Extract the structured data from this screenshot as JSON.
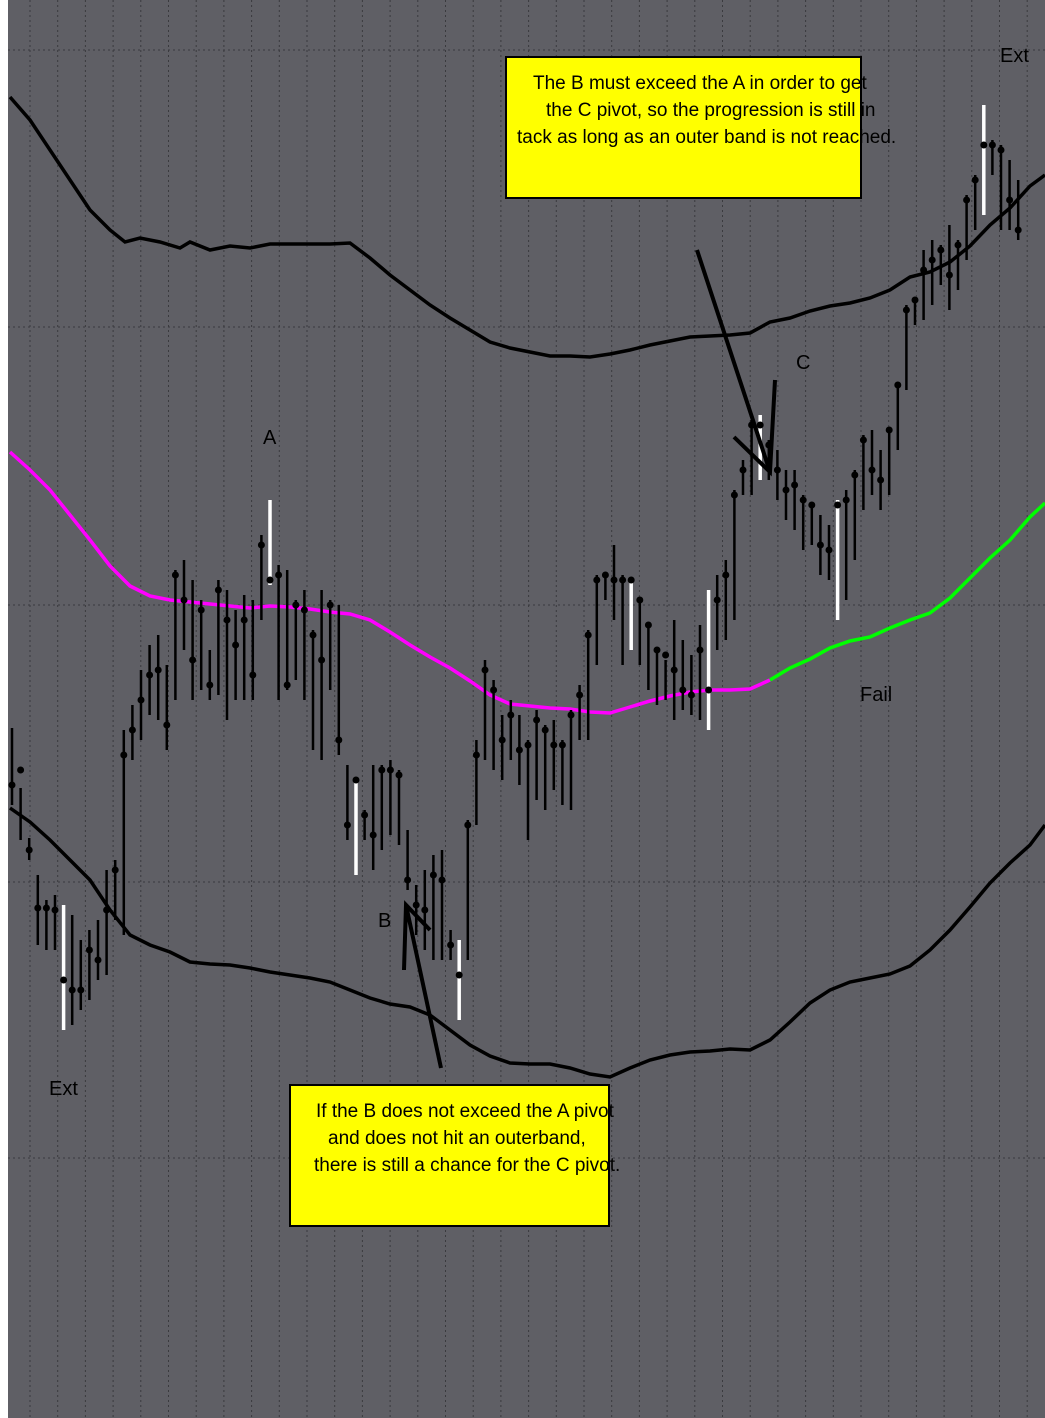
{
  "chart_data": {
    "type": "ohlc",
    "title": "",
    "xlabel": "",
    "ylabel": "",
    "grid": true,
    "background": "#5f5f65",
    "colors": {
      "bars": "#000000",
      "highlight_bars": "#ffffff",
      "bands": "#000000",
      "midline_before": "#ff00ff",
      "midline_after": "#00ff00",
      "annotation_box": "#ffff00"
    },
    "ylim": [
      0,
      1418
    ],
    "bars": [
      [
        728,
        785,
        805,
        false
      ],
      [
        788,
        770,
        840,
        false
      ],
      [
        838,
        850,
        860,
        false
      ],
      [
        875,
        908,
        945,
        false
      ],
      [
        900,
        908,
        950,
        false
      ],
      [
        895,
        910,
        950,
        false
      ],
      [
        905,
        980,
        1030,
        true
      ],
      [
        915,
        990,
        1025,
        false
      ],
      [
        940,
        990,
        1010,
        false
      ],
      [
        930,
        950,
        1000,
        false
      ],
      [
        920,
        960,
        980,
        false
      ],
      [
        870,
        910,
        975,
        false
      ],
      [
        860,
        870,
        920,
        false
      ],
      [
        730,
        755,
        935,
        false
      ],
      [
        705,
        730,
        760,
        false
      ],
      [
        670,
        700,
        740,
        false
      ],
      [
        645,
        675,
        715,
        false
      ],
      [
        635,
        670,
        720,
        false
      ],
      [
        665,
        725,
        750,
        false
      ],
      [
        570,
        575,
        700,
        false
      ],
      [
        560,
        600,
        650,
        false
      ],
      [
        580,
        660,
        700,
        false
      ],
      [
        600,
        610,
        690,
        false
      ],
      [
        650,
        685,
        700,
        false
      ],
      [
        580,
        590,
        695,
        false
      ],
      [
        590,
        620,
        720,
        false
      ],
      [
        610,
        645,
        700,
        false
      ],
      [
        595,
        620,
        700,
        false
      ],
      [
        600,
        675,
        700,
        false
      ],
      [
        535,
        545,
        620,
        false
      ],
      [
        500,
        580,
        585,
        true
      ],
      [
        565,
        575,
        700,
        false
      ],
      [
        570,
        685,
        690,
        false
      ],
      [
        600,
        605,
        680,
        false
      ],
      [
        590,
        610,
        700,
        false
      ],
      [
        630,
        635,
        750,
        false
      ],
      [
        590,
        660,
        760,
        false
      ],
      [
        600,
        605,
        690,
        false
      ],
      [
        605,
        740,
        755,
        false
      ],
      [
        765,
        825,
        840,
        false
      ],
      [
        780,
        780,
        875,
        true
      ],
      [
        810,
        815,
        840,
        false
      ],
      [
        765,
        835,
        870,
        false
      ],
      [
        765,
        770,
        850,
        false
      ],
      [
        760,
        770,
        835,
        false
      ],
      [
        770,
        775,
        845,
        false
      ],
      [
        830,
        880,
        890,
        false
      ],
      [
        885,
        905,
        935,
        false
      ],
      [
        870,
        910,
        950,
        false
      ],
      [
        855,
        875,
        960,
        false
      ],
      [
        850,
        880,
        960,
        false
      ],
      [
        930,
        945,
        960,
        false
      ],
      [
        940,
        975,
        1020,
        true
      ],
      [
        820,
        825,
        960,
        false
      ],
      [
        740,
        755,
        825,
        false
      ],
      [
        660,
        670,
        760,
        false
      ],
      [
        680,
        690,
        770,
        false
      ],
      [
        715,
        740,
        780,
        false
      ],
      [
        700,
        715,
        760,
        false
      ],
      [
        715,
        750,
        785,
        false
      ],
      [
        740,
        745,
        840,
        false
      ],
      [
        710,
        720,
        800,
        false
      ],
      [
        725,
        730,
        810,
        false
      ],
      [
        720,
        745,
        790,
        false
      ],
      [
        740,
        745,
        805,
        false
      ],
      [
        710,
        715,
        810,
        false
      ],
      [
        685,
        695,
        740,
        false
      ],
      [
        630,
        635,
        740,
        false
      ],
      [
        575,
        580,
        665,
        false
      ],
      [
        575,
        575,
        600,
        false
      ],
      [
        545,
        580,
        620,
        false
      ],
      [
        575,
        580,
        665,
        false
      ],
      [
        580,
        580,
        650,
        true
      ],
      [
        600,
        600,
        665,
        false
      ],
      [
        625,
        625,
        690,
        false
      ],
      [
        650,
        650,
        705,
        false
      ],
      [
        660,
        655,
        700,
        false
      ],
      [
        620,
        670,
        720,
        false
      ],
      [
        640,
        690,
        710,
        false
      ],
      [
        655,
        695,
        715,
        false
      ],
      [
        625,
        650,
        720,
        false
      ],
      [
        590,
        690,
        730,
        true
      ],
      [
        575,
        600,
        650,
        false
      ],
      [
        560,
        575,
        640,
        false
      ],
      [
        490,
        495,
        620,
        false
      ],
      [
        460,
        470,
        495,
        false
      ],
      [
        420,
        425,
        495,
        false
      ],
      [
        415,
        425,
        480,
        true
      ],
      [
        440,
        445,
        480,
        false
      ],
      [
        450,
        470,
        500,
        false
      ],
      [
        470,
        490,
        520,
        false
      ],
      [
        470,
        485,
        530,
        false
      ],
      [
        495,
        500,
        550,
        false
      ],
      [
        505,
        505,
        545,
        false
      ],
      [
        515,
        545,
        575,
        false
      ],
      [
        525,
        550,
        580,
        false
      ],
      [
        500,
        505,
        620,
        true
      ],
      [
        490,
        500,
        600,
        false
      ],
      [
        470,
        475,
        560,
        false
      ],
      [
        435,
        440,
        510,
        false
      ],
      [
        430,
        470,
        495,
        false
      ],
      [
        450,
        480,
        510,
        false
      ],
      [
        430,
        430,
        495,
        false
      ],
      [
        385,
        385,
        450,
        false
      ],
      [
        305,
        310,
        390,
        false
      ],
      [
        300,
        300,
        325,
        false
      ],
      [
        250,
        270,
        320,
        false
      ],
      [
        240,
        260,
        305,
        false
      ],
      [
        245,
        250,
        285,
        false
      ],
      [
        225,
        275,
        310,
        false
      ],
      [
        240,
        245,
        290,
        false
      ],
      [
        195,
        200,
        260,
        false
      ],
      [
        175,
        180,
        230,
        false
      ],
      [
        105,
        145,
        215,
        true
      ],
      [
        140,
        145,
        175,
        false
      ],
      [
        145,
        150,
        230,
        false
      ],
      [
        160,
        200,
        230,
        false
      ],
      [
        180,
        230,
        240,
        false
      ]
    ],
    "upper_band": [
      [
        10,
        97
      ],
      [
        30,
        120
      ],
      [
        50,
        150
      ],
      [
        70,
        180
      ],
      [
        90,
        210
      ],
      [
        110,
        230
      ],
      [
        125,
        242
      ],
      [
        140,
        238
      ],
      [
        160,
        242
      ],
      [
        180,
        248
      ],
      [
        190,
        242
      ],
      [
        210,
        250
      ],
      [
        230,
        246
      ],
      [
        250,
        248
      ],
      [
        270,
        244
      ],
      [
        290,
        244
      ],
      [
        310,
        244
      ],
      [
        330,
        244
      ],
      [
        350,
        243
      ],
      [
        370,
        258
      ],
      [
        390,
        275
      ],
      [
        410,
        290
      ],
      [
        430,
        305
      ],
      [
        450,
        318
      ],
      [
        470,
        330
      ],
      [
        490,
        342
      ],
      [
        510,
        348
      ],
      [
        530,
        352
      ],
      [
        550,
        356
      ],
      [
        570,
        356
      ],
      [
        590,
        357
      ],
      [
        610,
        354
      ],
      [
        630,
        350
      ],
      [
        650,
        345
      ],
      [
        670,
        341
      ],
      [
        690,
        337
      ],
      [
        710,
        336
      ],
      [
        730,
        335
      ],
      [
        750,
        333
      ],
      [
        770,
        322
      ],
      [
        790,
        318
      ],
      [
        810,
        311
      ],
      [
        830,
        306
      ],
      [
        850,
        303
      ],
      [
        870,
        298
      ],
      [
        890,
        290
      ],
      [
        910,
        277
      ],
      [
        930,
        272
      ],
      [
        950,
        262
      ],
      [
        970,
        246
      ],
      [
        990,
        225
      ],
      [
        1010,
        208
      ],
      [
        1030,
        186
      ],
      [
        1045,
        175
      ]
    ],
    "lower_band": [
      [
        10,
        808
      ],
      [
        30,
        822
      ],
      [
        50,
        840
      ],
      [
        70,
        860
      ],
      [
        90,
        880
      ],
      [
        110,
        910
      ],
      [
        130,
        935
      ],
      [
        150,
        945
      ],
      [
        170,
        952
      ],
      [
        190,
        962
      ],
      [
        210,
        964
      ],
      [
        230,
        965
      ],
      [
        250,
        968
      ],
      [
        270,
        972
      ],
      [
        290,
        975
      ],
      [
        310,
        978
      ],
      [
        330,
        982
      ],
      [
        350,
        990
      ],
      [
        370,
        998
      ],
      [
        390,
        1004
      ],
      [
        410,
        1007
      ],
      [
        430,
        1015
      ],
      [
        450,
        1030
      ],
      [
        470,
        1045
      ],
      [
        490,
        1056
      ],
      [
        510,
        1063
      ],
      [
        530,
        1064
      ],
      [
        550,
        1064
      ],
      [
        570,
        1068
      ],
      [
        590,
        1074
      ],
      [
        610,
        1077
      ],
      [
        630,
        1068
      ],
      [
        650,
        1060
      ],
      [
        670,
        1055
      ],
      [
        690,
        1052
      ],
      [
        710,
        1051
      ],
      [
        730,
        1049
      ],
      [
        750,
        1050
      ],
      [
        770,
        1040
      ],
      [
        790,
        1022
      ],
      [
        810,
        1003
      ],
      [
        830,
        990
      ],
      [
        850,
        982
      ],
      [
        870,
        978
      ],
      [
        890,
        974
      ],
      [
        910,
        966
      ],
      [
        930,
        950
      ],
      [
        950,
        930
      ],
      [
        970,
        907
      ],
      [
        990,
        883
      ],
      [
        1010,
        863
      ],
      [
        1030,
        845
      ],
      [
        1045,
        825
      ]
    ],
    "midline_before": [
      [
        10,
        452
      ],
      [
        30,
        470
      ],
      [
        50,
        490
      ],
      [
        70,
        515
      ],
      [
        90,
        540
      ],
      [
        110,
        566
      ],
      [
        130,
        586
      ],
      [
        150,
        596
      ],
      [
        170,
        600
      ],
      [
        190,
        602
      ],
      [
        210,
        604
      ],
      [
        230,
        606
      ],
      [
        250,
        608
      ],
      [
        270,
        606
      ],
      [
        290,
        607
      ],
      [
        310,
        609
      ],
      [
        330,
        612
      ],
      [
        350,
        614
      ],
      [
        370,
        620
      ],
      [
        390,
        632
      ],
      [
        410,
        645
      ],
      [
        430,
        657
      ],
      [
        450,
        668
      ],
      [
        470,
        681
      ],
      [
        490,
        695
      ],
      [
        510,
        704
      ],
      [
        530,
        706
      ],
      [
        550,
        708
      ],
      [
        570,
        709
      ],
      [
        590,
        712
      ],
      [
        610,
        713
      ],
      [
        630,
        707
      ],
      [
        650,
        701
      ],
      [
        670,
        696
      ],
      [
        690,
        692
      ],
      [
        710,
        690
      ],
      [
        730,
        690
      ],
      [
        750,
        689
      ],
      [
        770,
        680
      ]
    ],
    "midline_after": [
      [
        770,
        680
      ],
      [
        790,
        668
      ],
      [
        810,
        659
      ],
      [
        830,
        648
      ],
      [
        850,
        641
      ],
      [
        870,
        637
      ],
      [
        890,
        628
      ],
      [
        910,
        620
      ],
      [
        930,
        613
      ],
      [
        950,
        598
      ],
      [
        970,
        578
      ],
      [
        990,
        558
      ],
      [
        1010,
        540
      ],
      [
        1030,
        517
      ],
      [
        1045,
        503
      ]
    ],
    "labels": [
      "A",
      "B",
      "C",
      "Ext",
      "Ext",
      "Fail"
    ],
    "annotations": [
      {
        "lines": [
          "The B must exceed the A in order to get",
          "the C pivot, so the progression is still in",
          "tack as long as an outer band is not reached."
        ]
      },
      {
        "lines": [
          "If the B does not exceed the A pivot",
          "and does not hit an outerband,",
          "there is still a chance for the C pivot."
        ]
      }
    ]
  }
}
